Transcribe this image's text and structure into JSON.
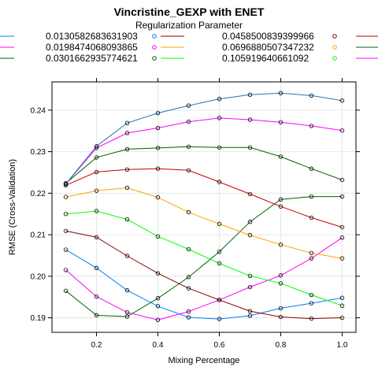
{
  "chart_data": {
    "type": "line",
    "title": "Vincristine_GEXP with ENET",
    "xlabel": "Mixing Percentage",
    "ylabel": "RMSE (Cross-Validation)",
    "legend_title": "Regularization Parameter",
    "legend_placement": "top",
    "grid": true,
    "xlim": [
      0.055,
      1.045
    ],
    "ylim": [
      0.1865,
      0.2468
    ],
    "x_ticks": [
      0.2,
      0.4,
      0.6,
      0.8,
      1.0
    ],
    "x_tick_labels": [
      "0.2",
      "0.4",
      "0.6",
      "0.8",
      "1.0"
    ],
    "y_ticks": [
      0.19,
      0.2,
      0.21,
      0.22,
      0.23,
      0.24
    ],
    "y_tick_labels": [
      "0.19",
      "0.20",
      "0.21",
      "0.22",
      "0.23",
      "0.24"
    ],
    "x": [
      0.1,
      0.2,
      0.3,
      0.4,
      0.5,
      0.6,
      0.7,
      0.8,
      0.9,
      1.0
    ],
    "series": [
      {
        "name": "0.0130582683631903",
        "color": "#0080ff",
        "values": [
          0.2064,
          0.202,
          0.1966,
          0.1928,
          0.1901,
          0.1897,
          0.1905,
          0.1923,
          0.1935,
          0.1948
        ]
      },
      {
        "name": "0.0198474068093865",
        "color": "#ff00ff",
        "values": [
          0.2015,
          0.1951,
          0.1913,
          0.1895,
          0.1915,
          0.1943,
          0.1974,
          0.2002,
          0.2043,
          0.2093
        ]
      },
      {
        "name": "0.0301662935774621",
        "color": "#006400",
        "values": [
          0.1965,
          0.1906,
          0.1903,
          0.1947,
          0.1998,
          0.2059,
          0.2131,
          0.2185,
          0.2192,
          0.2192
        ]
      },
      {
        "name": "0.0458500839399966",
        "color": "#8b0000",
        "values": [
          0.2109,
          0.2094,
          0.2049,
          0.2007,
          0.1971,
          0.1943,
          0.1916,
          0.1902,
          0.1898,
          0.19
        ]
      },
      {
        "name": "0.0696880507347232",
        "color": "#ffa500",
        "values": [
          0.2191,
          0.2206,
          0.2213,
          0.219,
          0.2154,
          0.2126,
          0.2099,
          0.2076,
          0.2056,
          0.2043
        ]
      },
      {
        "name": "0.105919640661092",
        "color": "#00ff00",
        "values": [
          0.215,
          0.2157,
          0.2137,
          0.2096,
          0.2065,
          0.2031,
          0.2001,
          0.1983,
          0.1955,
          0.1929
        ]
      },
      {
        "name": "",
        "color": "#cc0000",
        "values": [
          0.2219,
          0.2251,
          0.2257,
          0.2259,
          0.2255,
          0.2227,
          0.2198,
          0.2168,
          0.2141,
          0.2118
        ]
      },
      {
        "name": "",
        "color": "#006400",
        "values": [
          0.2224,
          0.2286,
          0.2306,
          0.2309,
          0.2312,
          0.231,
          0.231,
          0.2288,
          0.2259,
          0.2232
        ]
      },
      {
        "name": "",
        "color": "#ff00ff",
        "values": [
          0.2222,
          0.2309,
          0.2345,
          0.2357,
          0.2372,
          0.2381,
          0.2377,
          0.2371,
          0.2362,
          0.2351
        ]
      },
      {
        "name": "",
        "color": "#1f78b4",
        "values": [
          0.2222,
          0.2313,
          0.2369,
          0.2393,
          0.2411,
          0.2427,
          0.2437,
          0.2441,
          0.2435,
          0.2423
        ]
      }
    ]
  }
}
